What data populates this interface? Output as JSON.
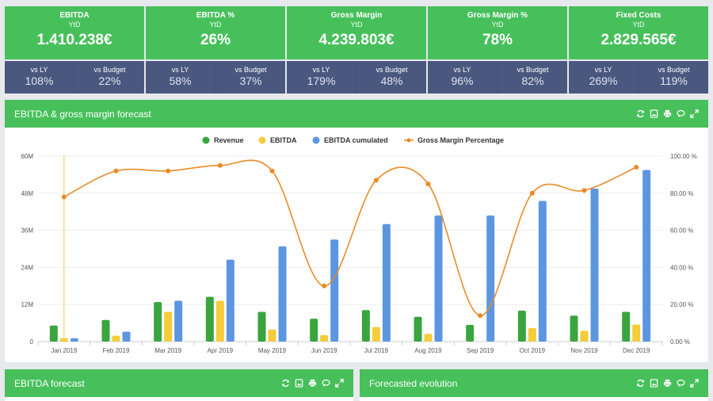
{
  "kpis": [
    {
      "title": "EBITDA",
      "sub": "YtD",
      "value": "1.410.238€",
      "vs": [
        {
          "label": "vs LY",
          "value": "108%"
        },
        {
          "label": "vs Budget",
          "value": "22%"
        }
      ]
    },
    {
      "title": "EBITDA %",
      "sub": "YtD",
      "value": "26%",
      "vs": [
        {
          "label": "vs LY",
          "value": "58%"
        },
        {
          "label": "vs Budget",
          "value": "37%"
        }
      ]
    },
    {
      "title": "Gross Margin",
      "sub": "YtD",
      "value": "4.239.803€",
      "vs": [
        {
          "label": "vs LY",
          "value": "179%"
        },
        {
          "label": "vs Budget",
          "value": "48%"
        }
      ]
    },
    {
      "title": "Gross Margin %",
      "sub": "YtD",
      "value": "78%",
      "vs": [
        {
          "label": "vs LY",
          "value": "96%"
        },
        {
          "label": "vs Budget",
          "value": "82%"
        }
      ]
    },
    {
      "title": "Fixed Costs",
      "sub": "YtD",
      "value": "2.829.565€",
      "vs": [
        {
          "label": "vs LY",
          "value": "269%"
        },
        {
          "label": "vs Budget",
          "value": "119%"
        }
      ]
    }
  ],
  "panels": {
    "main_title": "EBITDA & gross margin forecast",
    "left_title": "EBITDA forecast",
    "right_title": "Forecasted evolution"
  },
  "colors": {
    "green": "#47c05b",
    "navy": "#4a5880",
    "revenue": "#3aa53e",
    "ebitda": "#f5cc3a",
    "cumulated": "#5c96e0",
    "margin": "#e98b25"
  },
  "chart_data": {
    "type": "bar",
    "categories": [
      "Jan 2019",
      "Feb 2019",
      "Mar 2019",
      "Apr 2019",
      "May 2019",
      "Jun 2019",
      "Jul 2019",
      "Aug 2019",
      "Sep 2019",
      "Oct 2019",
      "Nov 2019",
      "Dec 2019"
    ],
    "series": [
      {
        "name": "Revenue",
        "type": "bar",
        "color": "#3aa53e",
        "values": [
          5.2,
          7,
          12.8,
          14.5,
          9.6,
          7.4,
          10.2,
          8,
          5.4,
          10,
          8.4,
          9.6
        ]
      },
      {
        "name": "EBITDA",
        "type": "bar",
        "color": "#f5cc3a",
        "values": [
          1.1,
          1.9,
          9.6,
          13.2,
          3.9,
          2.1,
          4.7,
          2.5,
          0,
          4.4,
          3.5,
          5.5
        ]
      },
      {
        "name": "EBITDA cumulated",
        "type": "bar",
        "color": "#5c96e0",
        "values": [
          1.1,
          3.2,
          13.2,
          26.5,
          30.8,
          33,
          38,
          40.8,
          40.8,
          45.5,
          49.5,
          55.5
        ]
      },
      {
        "name": "Gross Margin Percentage",
        "type": "line",
        "axis": "right",
        "color": "#e98b25",
        "values": [
          78,
          92,
          92,
          95,
          92,
          30,
          87,
          85,
          14,
          80,
          81.5,
          94
        ]
      }
    ],
    "y_left": {
      "ticks": [
        "0",
        "12M",
        "24M",
        "36M",
        "48M",
        "60M"
      ],
      "range": [
        0,
        60
      ]
    },
    "y_right": {
      "ticks": [
        "0.00 %",
        "20.00 %",
        "40.00 %",
        "60.00 %",
        "80.00 %",
        "100.00 %"
      ],
      "range": [
        0,
        100
      ]
    },
    "legend_position": "top-center",
    "grid": true
  }
}
